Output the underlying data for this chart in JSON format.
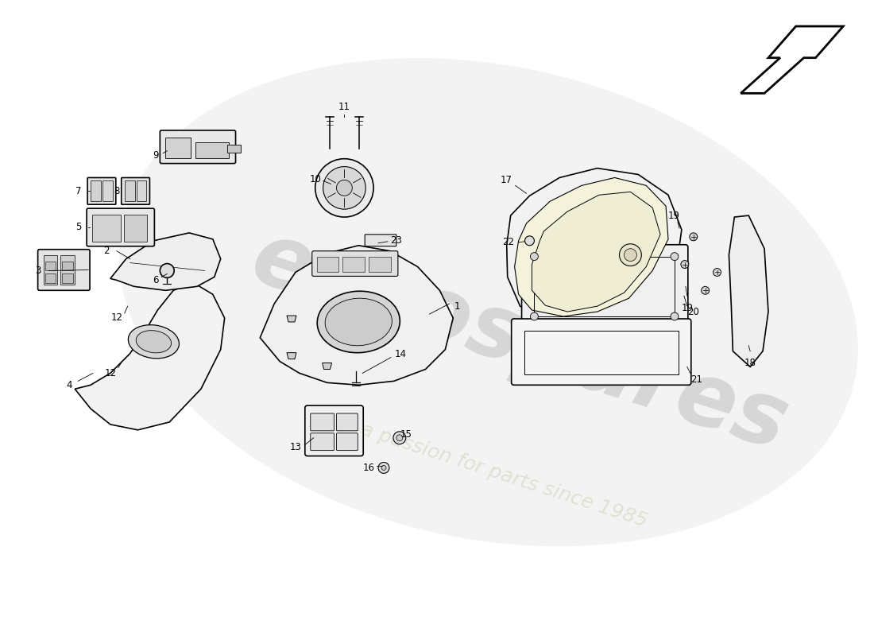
{
  "bg_color": "#ffffff",
  "watermark_text1": "eurospares",
  "watermark_text2": "a passion for parts since 1985",
  "arrow_color": "#000000",
  "line_color": "#000000",
  "part_numbers": [
    1,
    2,
    3,
    4,
    5,
    6,
    7,
    8,
    9,
    10,
    11,
    12,
    13,
    14,
    15,
    16,
    17,
    18,
    19,
    20,
    21,
    22,
    23
  ],
  "figsize": [
    11.0,
    8.0
  ],
  "dpi": 100
}
